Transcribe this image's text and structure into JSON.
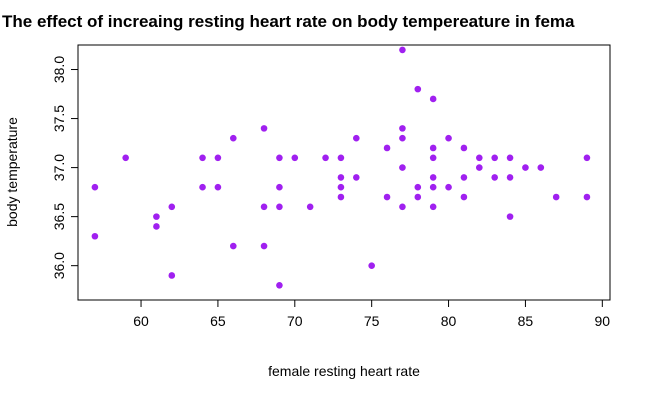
{
  "chart_data": {
    "type": "scatter",
    "title": "The effect of increaing resting heart rate on body tempereature in fema",
    "xlabel": "female resting heart rate",
    "ylabel": "body temperature",
    "xlim": [
      55.9,
      90.5
    ],
    "ylim": [
      35.65,
      38.25
    ],
    "xticks": [
      "60",
      "65",
      "70",
      "75",
      "80",
      "85",
      "90"
    ],
    "yticks": [
      "36.0",
      "36.5",
      "37.0",
      "37.5",
      "38.0"
    ],
    "point_color": "#a020f0",
    "grid": false,
    "legend": "none",
    "points": [
      {
        "x": 57,
        "y": 36.8
      },
      {
        "x": 57,
        "y": 36.3
      },
      {
        "x": 59,
        "y": 37.1
      },
      {
        "x": 61,
        "y": 36.5
      },
      {
        "x": 61,
        "y": 36.4
      },
      {
        "x": 62,
        "y": 36.6
      },
      {
        "x": 62,
        "y": 35.9
      },
      {
        "x": 64,
        "y": 37.1
      },
      {
        "x": 64,
        "y": 36.8
      },
      {
        "x": 65,
        "y": 37.1
      },
      {
        "x": 65,
        "y": 36.8
      },
      {
        "x": 66,
        "y": 37.3
      },
      {
        "x": 66,
        "y": 36.2
      },
      {
        "x": 68,
        "y": 37.4
      },
      {
        "x": 68,
        "y": 36.6
      },
      {
        "x": 68,
        "y": 36.2
      },
      {
        "x": 69,
        "y": 37.1
      },
      {
        "x": 69,
        "y": 36.8
      },
      {
        "x": 69,
        "y": 36.6
      },
      {
        "x": 69,
        "y": 35.8
      },
      {
        "x": 70,
        "y": 37.1
      },
      {
        "x": 71,
        "y": 36.6
      },
      {
        "x": 72,
        "y": 37.1
      },
      {
        "x": 73,
        "y": 37.1
      },
      {
        "x": 73,
        "y": 36.9
      },
      {
        "x": 73,
        "y": 36.8
      },
      {
        "x": 73,
        "y": 36.7
      },
      {
        "x": 74,
        "y": 37.3
      },
      {
        "x": 74,
        "y": 36.9
      },
      {
        "x": 75,
        "y": 36.0
      },
      {
        "x": 76,
        "y": 37.2
      },
      {
        "x": 76,
        "y": 36.7
      },
      {
        "x": 77,
        "y": 38.2
      },
      {
        "x": 77,
        "y": 37.4
      },
      {
        "x": 77,
        "y": 37.3
      },
      {
        "x": 77,
        "y": 37.0
      },
      {
        "x": 77,
        "y": 36.6
      },
      {
        "x": 78,
        "y": 37.8
      },
      {
        "x": 78,
        "y": 36.8
      },
      {
        "x": 78,
        "y": 36.7
      },
      {
        "x": 79,
        "y": 37.7
      },
      {
        "x": 79,
        "y": 37.2
      },
      {
        "x": 79,
        "y": 37.1
      },
      {
        "x": 79,
        "y": 36.9
      },
      {
        "x": 79,
        "y": 36.8
      },
      {
        "x": 79,
        "y": 36.6
      },
      {
        "x": 80,
        "y": 37.3
      },
      {
        "x": 80,
        "y": 36.8
      },
      {
        "x": 81,
        "y": 37.2
      },
      {
        "x": 81,
        "y": 36.9
      },
      {
        "x": 81,
        "y": 36.7
      },
      {
        "x": 82,
        "y": 37.1
      },
      {
        "x": 82,
        "y": 37.0
      },
      {
        "x": 83,
        "y": 37.1
      },
      {
        "x": 83,
        "y": 36.9
      },
      {
        "x": 84,
        "y": 37.1
      },
      {
        "x": 84,
        "y": 36.9
      },
      {
        "x": 84,
        "y": 36.5
      },
      {
        "x": 85,
        "y": 37.0
      },
      {
        "x": 86,
        "y": 37.0
      },
      {
        "x": 87,
        "y": 36.7
      },
      {
        "x": 89,
        "y": 37.1
      },
      {
        "x": 89,
        "y": 36.7
      }
    ]
  }
}
